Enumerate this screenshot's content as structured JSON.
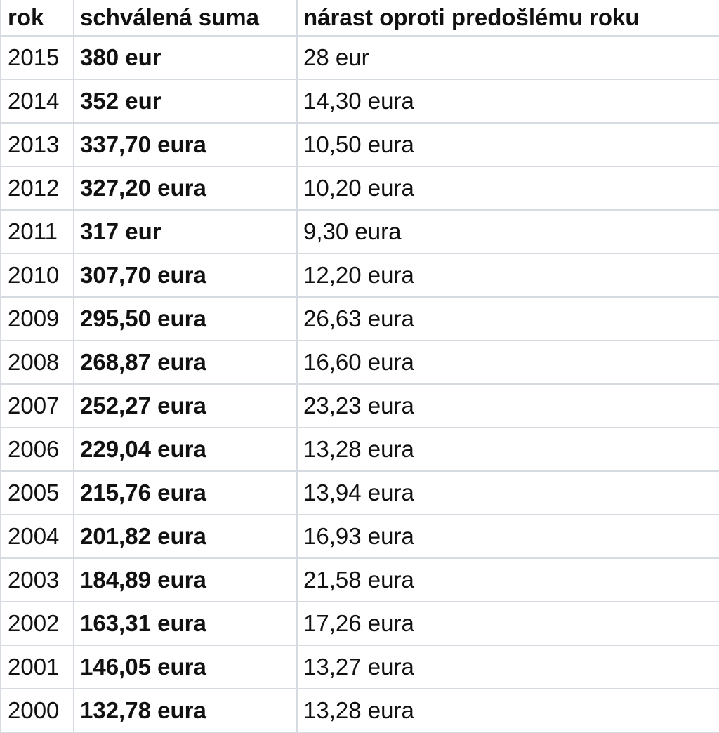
{
  "table": {
    "header": [
      "rok",
      "schválená suma",
      "nárast oproti predošlému roku"
    ],
    "rows": [
      [
        "2015",
        "380 eur",
        "28 eur"
      ],
      [
        "2014",
        "352 eur",
        "14,30 eura"
      ],
      [
        "2013",
        "337,70 eura",
        "10,50 eura"
      ],
      [
        "2012",
        "327,20 eura",
        "10,20 eura"
      ],
      [
        "2011",
        "317 eur",
        "9,30 eura"
      ],
      [
        "2010",
        "307,70 eura",
        "12,20 eura"
      ],
      [
        "2009",
        "295,50 eura",
        "26,63 eura"
      ],
      [
        "2008",
        "268,87 eura",
        "16,60 eura"
      ],
      [
        "2007",
        "252,27 eura",
        "23,23 eura"
      ],
      [
        "2006",
        "229,04 eura",
        "13,28 eura"
      ],
      [
        "2005",
        "215,76 eura",
        "13,94 eura"
      ],
      [
        "2004",
        "201,82 eura",
        "16,93 eura"
      ],
      [
        "2003",
        "184,89 eura",
        "21,58 eura"
      ],
      [
        "2002",
        "163,31 eura",
        "17,26 eura"
      ],
      [
        "2001",
        "146,05 eura",
        "13,27 eura"
      ],
      [
        "2000",
        "132,78 eura",
        "13,28 eura"
      ]
    ]
  }
}
